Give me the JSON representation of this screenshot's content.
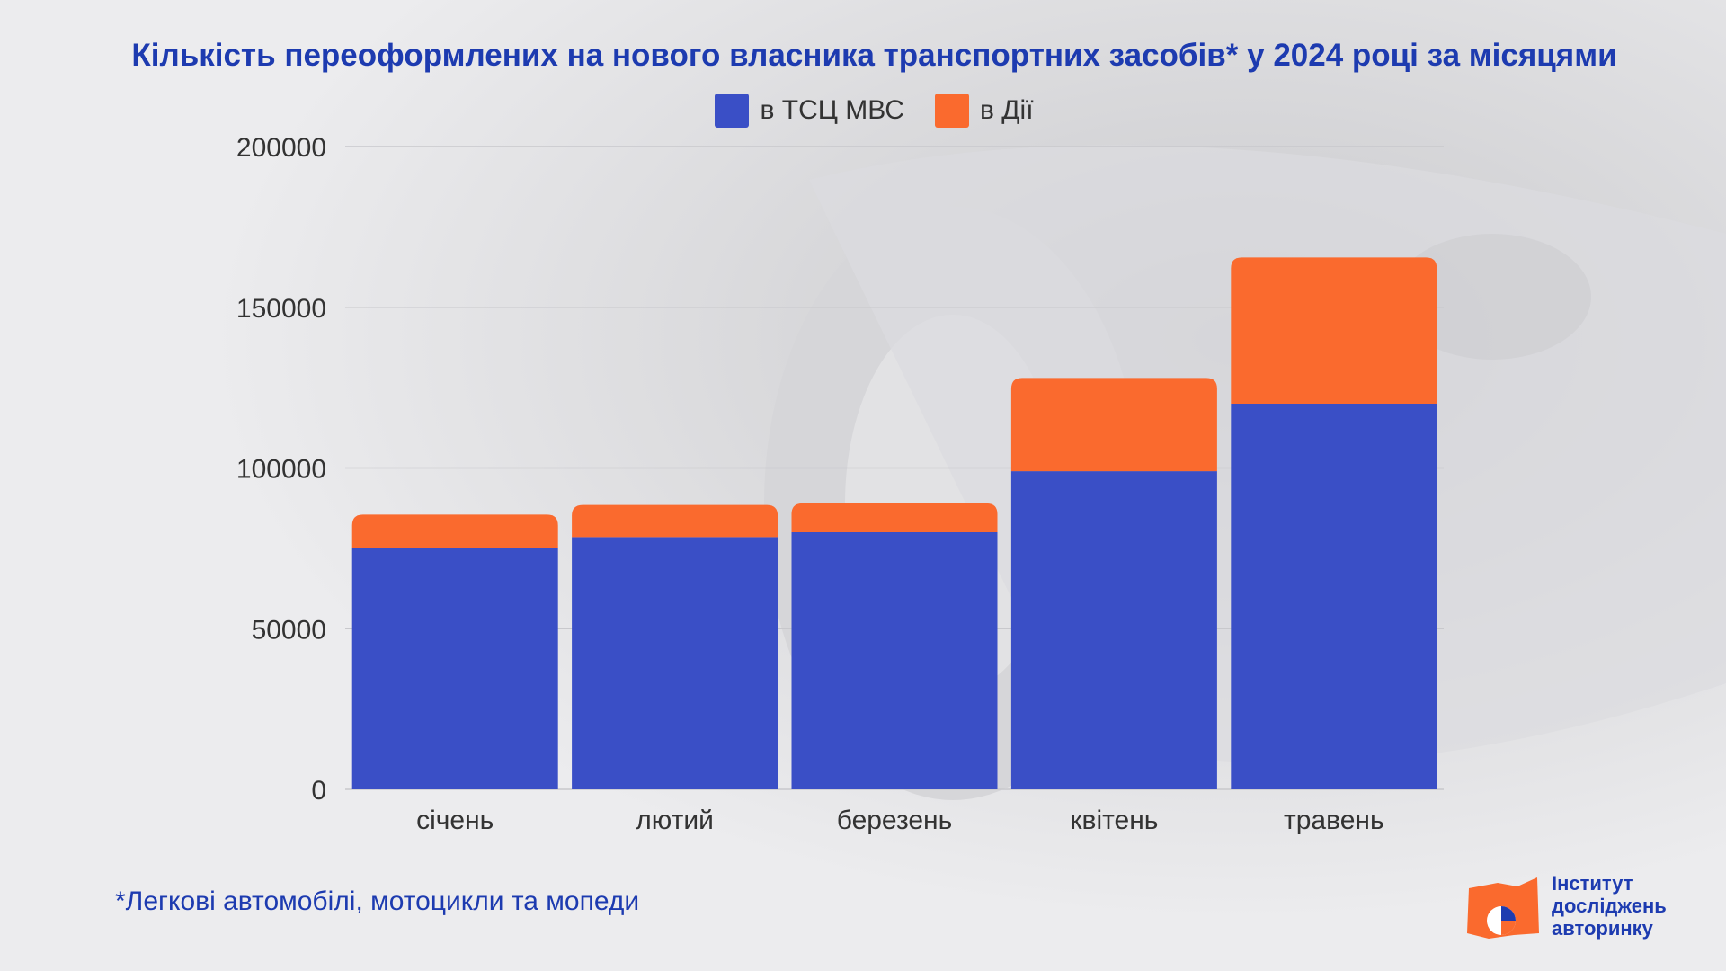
{
  "colors": {
    "mvs": "#3a4fc6",
    "diia": "#fa6a2e",
    "title": "#1d3bb0"
  },
  "title": "Кількість переоформлених на нового власника транспортних засобів* у 2024 році за місяцями",
  "footnote": "*Легкові автомобілі, мотоцикли та мопеди",
  "logo": {
    "line1": "Інститут",
    "line2": "досліджень",
    "line3": "авторинку"
  },
  "chart_data": {
    "type": "bar",
    "stacked": true,
    "categories": [
      "січень",
      "лютий",
      "березень",
      "квітень",
      "травень"
    ],
    "series": [
      {
        "name": "в ТСЦ МВС",
        "values": [
          75000,
          78500,
          80000,
          99000,
          120000
        ]
      },
      {
        "name": "в Дії",
        "values": [
          10500,
          10000,
          9000,
          29000,
          45500
        ]
      }
    ],
    "yticks": [
      0,
      50000,
      100000,
      150000,
      200000
    ],
    "ylim": [
      0,
      200000
    ],
    "grid": true,
    "legend": "top-center"
  }
}
